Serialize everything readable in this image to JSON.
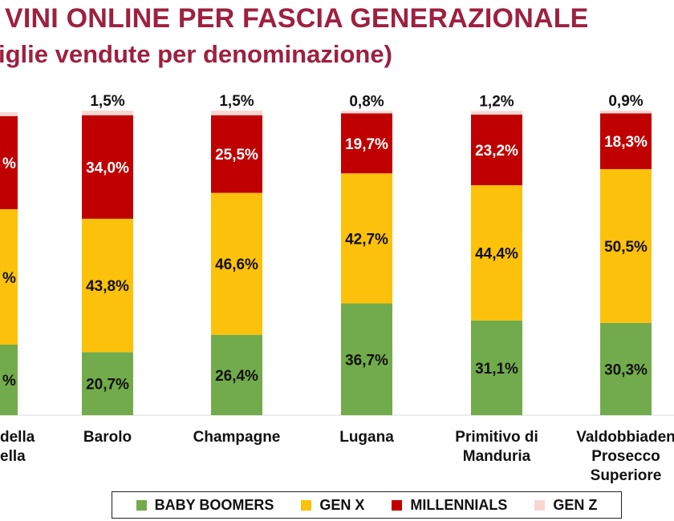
{
  "title": "VINI ONLINE PER FASCIA GENERAZIONALE",
  "subtitle": "iglie vendute per denominazione)",
  "colors": {
    "baby_boomers": "#72ab4b",
    "gen_x": "#fcc10a",
    "millennials": "#c00000",
    "gen_z": "#f8d7d2",
    "title": "#9e2040"
  },
  "chart_data": {
    "type": "bar",
    "stacked": true,
    "percent_scale": true,
    "categories": [
      "della\nella",
      "Barolo",
      "Champagne",
      "Lugana",
      "Primitivo di\nManduria",
      "Valdobbiaden\nProsecco\nSuperiore"
    ],
    "series": [
      {
        "name": "BABY BOOMERS",
        "values": [
          null,
          20.7,
          26.4,
          36.7,
          31.1,
          30.3
        ],
        "labels": [
          "%",
          "20,7%",
          "26,4%",
          "36,7%",
          "31,1%",
          "30,3%"
        ]
      },
      {
        "name": "GEN X",
        "values": [
          null,
          43.8,
          46.6,
          42.7,
          44.4,
          50.5
        ],
        "labels": [
          "%",
          "43,8%",
          "46,6%",
          "42,7%",
          "44,4%",
          "50,5%"
        ]
      },
      {
        "name": "MILLENNIALS",
        "values": [
          null,
          34.0,
          25.5,
          19.7,
          23.2,
          18.3
        ],
        "labels": [
          "%",
          "34,0%",
          "25,5%",
          "19,7%",
          "23,2%",
          "18,3%"
        ]
      },
      {
        "name": "GEN Z",
        "values": [
          null,
          1.5,
          1.5,
          0.8,
          1.2,
          0.9
        ],
        "labels": [
          "",
          "1,5%",
          "1,5%",
          "0,8%",
          "1,2%",
          "0,9%"
        ]
      }
    ],
    "legend_position": "bottom",
    "grid": false
  }
}
